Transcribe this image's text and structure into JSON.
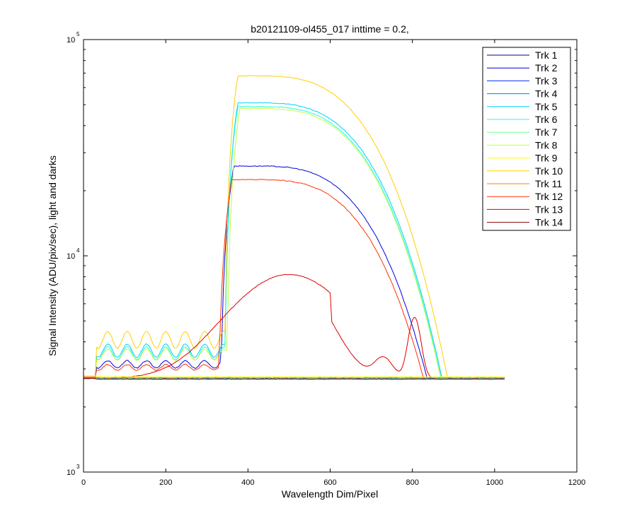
{
  "chart_data": {
    "type": "line",
    "title": "b20121109-ol455_017 inttime = 0.2,",
    "xlabel": "Wavelength Dim/Pixel",
    "ylabel": "Signal Intensity (ADU/pix/sec), light and darks",
    "xlim": [
      0,
      1200
    ],
    "ylim": [
      1000,
      100000
    ],
    "yscale": "log",
    "grid": false,
    "legend_position": "top-right",
    "x_ticks": [
      0,
      200,
      400,
      600,
      800,
      1000,
      1200
    ],
    "x_tick_labels": [
      "0",
      "200",
      "400",
      "600",
      "800",
      "1000",
      "1200"
    ],
    "y_ticks": [
      {
        "value": 1000,
        "base": "10",
        "exp": "3"
      },
      {
        "value": 10000,
        "base": "10",
        "exp": "4"
      },
      {
        "value": 100000,
        "base": "10",
        "exp": "5"
      }
    ],
    "series": [
      {
        "name": "Trk 1",
        "color": "#00008f",
        "shape": "dark",
        "level": 2700
      },
      {
        "name": "Trk 2",
        "color": "#0000df",
        "shape": "light",
        "peak": 26000,
        "edge": 335,
        "base": 3150,
        "ripple": 0.04
      },
      {
        "name": "Trk 3",
        "color": "#0030ff",
        "shape": "dark",
        "level": 2710
      },
      {
        "name": "Trk 4",
        "color": "#0080ff",
        "shape": "dark",
        "level": 2720
      },
      {
        "name": "Trk 5",
        "color": "#00cfff",
        "shape": "light",
        "peak": 51000,
        "edge": 345,
        "base": 3650,
        "ripple": 0.07
      },
      {
        "name": "Trk 6",
        "color": "#20ffdf",
        "shape": "light",
        "peak": 49000,
        "edge": 345,
        "base": 3550,
        "ripple": 0.07
      },
      {
        "name": "Trk 7",
        "color": "#70ff8f",
        "shape": "dark",
        "level": 2700
      },
      {
        "name": "Trk 8",
        "color": "#bfff40",
        "shape": "light",
        "peak": 48000,
        "edge": 350,
        "base": 3500,
        "ripple": 0.06
      },
      {
        "name": "Trk 9",
        "color": "#ffff00",
        "shape": "dark",
        "level": 2760
      },
      {
        "name": "Trk 10",
        "color": "#ffcf00",
        "shape": "light",
        "peak": 68000,
        "edge": 345,
        "base": 4100,
        "ripple": 0.09
      },
      {
        "name": "Trk 11",
        "color": "#ff8000",
        "shape": "dark",
        "level": 2730
      },
      {
        "name": "Trk 12",
        "color": "#ff3000",
        "shape": "light",
        "peak": 22500,
        "edge": 330,
        "base": 3050,
        "ripple": 0.03
      },
      {
        "name": "Trk 13",
        "color": "#df0000",
        "shape": "hump",
        "peak": 8200
      },
      {
        "name": "Trk 14",
        "color": "#8f0000",
        "shape": "dark",
        "level": 2690
      }
    ]
  }
}
